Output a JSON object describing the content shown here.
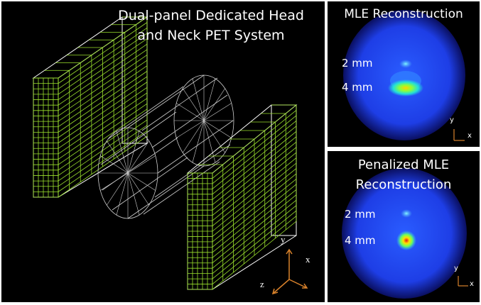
{
  "system_panel": {
    "title_line1": "Dual-panel Dedicated Head",
    "title_line2": "and Neck PET System",
    "axis_labels": {
      "x": "x",
      "y": "y",
      "z": "z"
    },
    "colors": {
      "detector": "#9be22d",
      "frame": "#ffffff",
      "axis": "#d9822b"
    }
  },
  "mle_panel": {
    "title": "MLE Reconstruction",
    "label_small": "2 mm",
    "label_large": "4 mm",
    "axis_labels": {
      "x": "x",
      "y": "y"
    }
  },
  "penalized_panel": {
    "title_line1": "Penalized MLE",
    "title_line2": "Reconstruction",
    "label_small": "2 mm",
    "label_large": "4 mm",
    "axis_labels": {
      "x": "x",
      "y": "y"
    }
  }
}
